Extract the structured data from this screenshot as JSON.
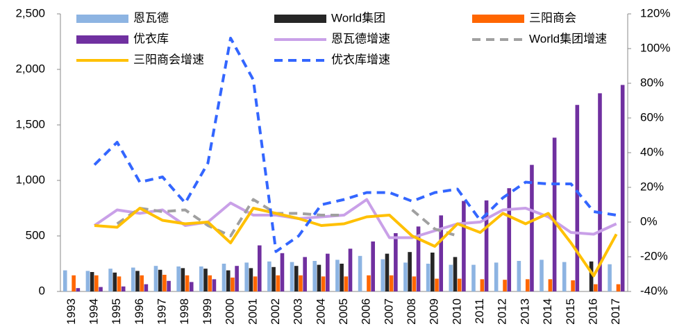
{
  "chart_data": {
    "type": "bar-line",
    "categories": [
      "1993",
      "1994",
      "1995",
      "1996",
      "1997",
      "1998",
      "1999",
      "2000",
      "2001",
      "2002",
      "2003",
      "2004",
      "2005",
      "2006",
      "2007",
      "2008",
      "2009",
      "2010",
      "2011",
      "2012",
      "2013",
      "2014",
      "2015",
      "2016",
      "2017"
    ],
    "series": [
      {
        "name": "恩瓦德",
        "type": "bar",
        "color": "#8db4e2",
        "values": [
          190,
          185,
          205,
          215,
          230,
          225,
          225,
          250,
          260,
          270,
          265,
          275,
          285,
          320,
          290,
          260,
          250,
          240,
          240,
          260,
          275,
          285,
          265,
          null,
          245
        ]
      },
      {
        "name": "World集团",
        "type": "bar",
        "color": "#262626",
        "values": [
          null,
          175,
          170,
          185,
          195,
          210,
          205,
          190,
          210,
          220,
          230,
          240,
          250,
          null,
          340,
          355,
          350,
          310,
          null,
          null,
          null,
          null,
          null,
          270,
          null
        ]
      },
      {
        "name": "三阳商会",
        "type": "bar",
        "color": "#ff6600",
        "values": [
          145,
          145,
          135,
          145,
          150,
          145,
          145,
          125,
          135,
          145,
          145,
          135,
          135,
          145,
          145,
          135,
          115,
          115,
          110,
          105,
          110,
          110,
          100,
          65,
          65
        ]
      },
      {
        "name": "优衣库",
        "type": "bar",
        "color": "#7030a0",
        "values": [
          30,
          40,
          45,
          65,
          95,
          85,
          110,
          230,
          415,
          345,
          310,
          340,
          385,
          450,
          525,
          585,
          685,
          815,
          820,
          930,
          1140,
          1385,
          1680,
          1785,
          1860
        ]
      },
      {
        "name": "恩瓦德增速",
        "type": "line",
        "axis": "y2",
        "color": "#c9a0e8",
        "dashed": false,
        "values": [
          null,
          -2,
          7,
          5,
          7,
          -2,
          0,
          11,
          4,
          4,
          2,
          3,
          4,
          13,
          -9,
          -9,
          -5,
          -1,
          0,
          7,
          8,
          3,
          -6,
          -7,
          -1
        ]
      },
      {
        "name": "World集团增速",
        "type": "line",
        "axis": "y2",
        "color": "#a0a0a0",
        "dashed": true,
        "values": [
          null,
          null,
          -1,
          8,
          6,
          7,
          -2,
          -8,
          13,
          5,
          5,
          4,
          4,
          null,
          null,
          7,
          -4,
          -8,
          null,
          null,
          null,
          null,
          null,
          null,
          null
        ]
      },
      {
        "name": "三阳商会增速",
        "type": "line",
        "axis": "y2",
        "color": "#ffc000",
        "dashed": false,
        "values": [
          null,
          -2,
          -3,
          8,
          1,
          -1,
          0,
          -12,
          8,
          5,
          2,
          -2,
          -1,
          3,
          4,
          -8,
          -14,
          -1,
          -6,
          5,
          -1,
          5,
          -12,
          -31,
          -7
        ]
      },
      {
        "name": "优衣库增速",
        "type": "line",
        "axis": "y2",
        "color": "#3366ff",
        "dashed": true,
        "values": [
          null,
          33,
          46,
          23,
          26,
          11,
          34,
          106,
          82,
          -17,
          -8,
          10,
          13,
          17,
          17,
          12,
          17,
          19,
          1,
          14,
          23,
          22,
          22,
          6,
          4
        ]
      }
    ],
    "ylim": [
      0,
      2500
    ],
    "yticks": [
      0,
      500,
      {
        "value": 1000,
        "label": "1,000"
      },
      {
        "value": 1500,
        "label": "1,500"
      },
      {
        "value": 2000,
        "label": "2,000"
      },
      {
        "value": 2500,
        "label": "2,500"
      }
    ],
    "y2lim": [
      -40,
      120
    ],
    "y2ticks": [
      {
        "value": -40,
        "label": "-40%"
      },
      {
        "value": -20,
        "label": "-20%"
      },
      {
        "value": 0,
        "label": "0%"
      },
      {
        "value": 20,
        "label": "20%"
      },
      {
        "value": 40,
        "label": "40%"
      },
      {
        "value": 60,
        "label": "60%"
      },
      {
        "value": 80,
        "label": "80%"
      },
      {
        "value": 100,
        "label": "100%"
      },
      {
        "value": 120,
        "label": "120%"
      }
    ],
    "legend": "top",
    "grid": false
  }
}
